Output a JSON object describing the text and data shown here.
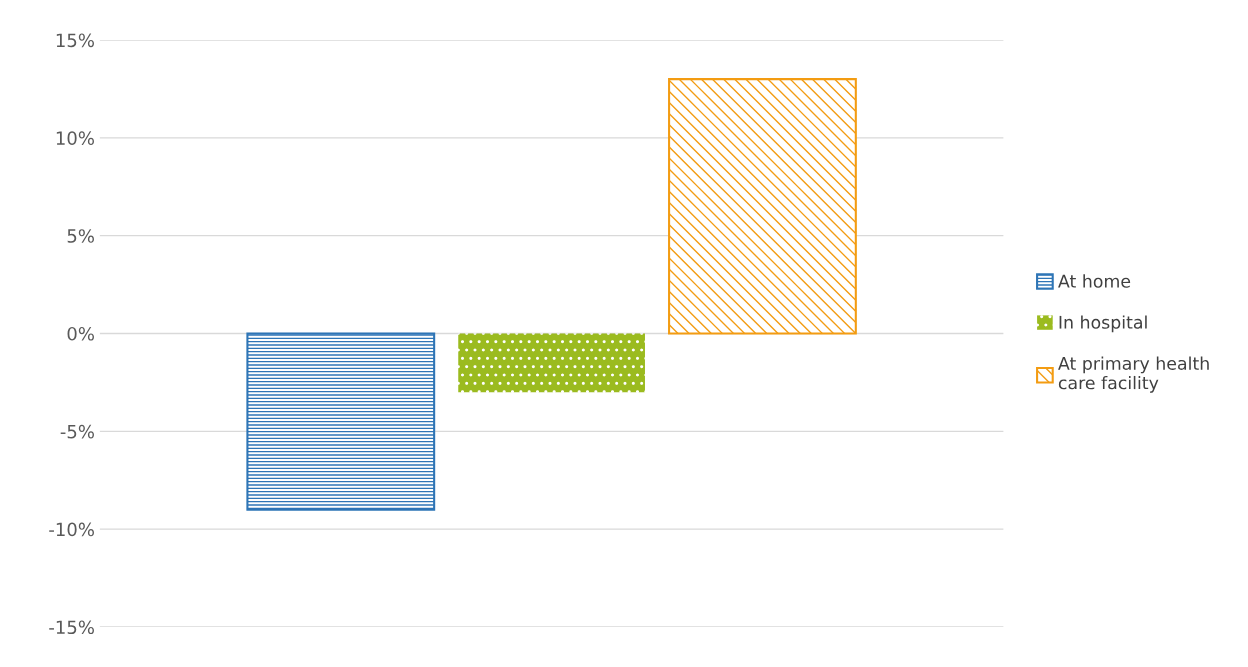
{
  "chart_data": {
    "type": "bar",
    "categories": [
      null
    ],
    "series": [
      {
        "name": "At home",
        "color": "#2e75b6",
        "values": [
          -9
        ]
      },
      {
        "name": "In hospital",
        "color": "#9bbb1f",
        "values": [
          -3
        ]
      },
      {
        "name": "At primary health care facility",
        "color": "#f39c12",
        "values": [
          13
        ]
      }
    ],
    "ylim": [
      -15,
      15
    ],
    "yticks": [
      {
        "value": -15,
        "label": "-15%"
      },
      {
        "value": -10,
        "label": "-10%"
      },
      {
        "value": -5,
        "label": "-5%"
      },
      {
        "value": 0,
        "label": "0%"
      },
      {
        "value": 5,
        "label": "5%"
      },
      {
        "value": 10,
        "label": "10%"
      },
      {
        "value": 15,
        "label": "15%"
      }
    ],
    "grid": "y",
    "legend": "right"
  }
}
